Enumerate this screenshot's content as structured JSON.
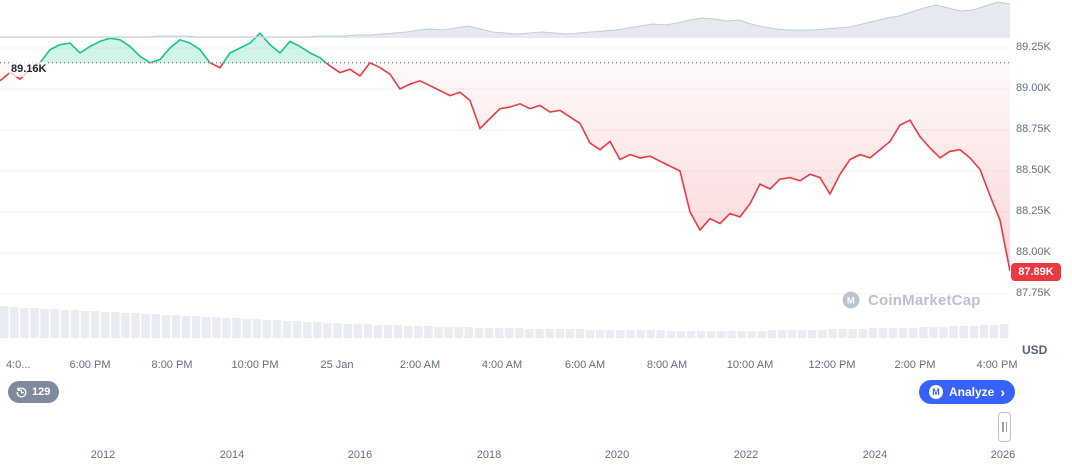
{
  "chart_data": {
    "type": "line",
    "title": "Intraday price chart with baseline, volume and multi-year navigator",
    "baseline": {
      "value": 89.16,
      "label": "89.16K"
    },
    "last_price": {
      "value": 87.89,
      "label": "87.89K"
    },
    "y_axis": {
      "unit": "USD",
      "tick_values": [
        89.25,
        89.0,
        88.75,
        88.5,
        88.25,
        88.0,
        87.75
      ],
      "tick_labels": [
        "89.25K",
        "89.00K",
        "88.75K",
        "88.50K",
        "88.25K",
        "88.00K",
        "87.75K"
      ]
    },
    "x_axis": {
      "tick_labels": [
        "4:0...",
        "6:00 PM",
        "8:00 PM",
        "10:00 PM",
        "25 Jan",
        "2:00 AM",
        "4:00 AM",
        "6:00 AM",
        "8:00 AM",
        "10:00 AM",
        "12:00 PM",
        "2:00 PM",
        "4:00 PM"
      ]
    },
    "series": [
      {
        "name": "price",
        "up_color": "#16c784",
        "down_color": "#ea3943",
        "values": [
          89.05,
          89.1,
          89.06,
          89.12,
          89.16,
          89.24,
          89.27,
          89.28,
          89.22,
          89.26,
          89.29,
          89.31,
          89.3,
          89.26,
          89.2,
          89.16,
          89.18,
          89.25,
          89.3,
          89.28,
          89.24,
          89.16,
          89.13,
          89.22,
          89.25,
          89.28,
          89.34,
          89.27,
          89.22,
          89.29,
          89.26,
          89.22,
          89.19,
          89.14,
          89.1,
          89.12,
          89.08,
          89.16,
          89.13,
          89.09,
          89.0,
          89.03,
          89.05,
          89.02,
          88.99,
          88.96,
          88.98,
          88.93,
          88.76,
          88.82,
          88.88,
          88.89,
          88.91,
          88.88,
          88.9,
          88.86,
          88.87,
          88.83,
          88.79,
          88.67,
          88.63,
          88.68,
          88.57,
          88.6,
          88.58,
          88.59,
          88.56,
          88.53,
          88.5,
          88.25,
          88.14,
          88.21,
          88.18,
          88.24,
          88.22,
          88.3,
          88.42,
          88.39,
          88.45,
          88.46,
          88.44,
          88.48,
          88.46,
          88.36,
          88.48,
          88.57,
          88.6,
          88.58,
          88.63,
          88.68,
          88.78,
          88.81,
          88.71,
          88.64,
          88.58,
          88.62,
          88.63,
          88.58,
          88.51,
          88.35,
          88.2,
          87.89
        ]
      }
    ],
    "volume": [
      32,
      31,
      30,
      30,
      29,
      29,
      28,
      28,
      27,
      27,
      26,
      26,
      25,
      25,
      24,
      24,
      23,
      23,
      22,
      22,
      21,
      21,
      20,
      20,
      19,
      19,
      18,
      18,
      17,
      17,
      16,
      16,
      15,
      15,
      14,
      14,
      14,
      13,
      13,
      13,
      12,
      12,
      12,
      11,
      11,
      11,
      11,
      10,
      10,
      10,
      10,
      10,
      9,
      9,
      9,
      9,
      9,
      9,
      8,
      8,
      8,
      8,
      8,
      8,
      8,
      8,
      7,
      7,
      7,
      7,
      7,
      7,
      7,
      7,
      7,
      7,
      8,
      8,
      8,
      8,
      8,
      8,
      9,
      9,
      9,
      9,
      10,
      10,
      10,
      10,
      10,
      11,
      11,
      11,
      12,
      12,
      12,
      13,
      13,
      14
    ],
    "navigator": {
      "year_labels": [
        "2012",
        "2014",
        "2016",
        "2018",
        "2020",
        "2022",
        "2024",
        "2026"
      ],
      "values": [
        1,
        1,
        1,
        1,
        1,
        1,
        1,
        1,
        1,
        1,
        1,
        1,
        1,
        2,
        2,
        2,
        1,
        1,
        1,
        1,
        1,
        1,
        1,
        1,
        1,
        1,
        2,
        2,
        2,
        3,
        3,
        4,
        5,
        6,
        8,
        9,
        8,
        10,
        12,
        9,
        6,
        5,
        4,
        5,
        6,
        5,
        4,
        5,
        6,
        7,
        8,
        10,
        12,
        14,
        13,
        15,
        18,
        20,
        19,
        17,
        18,
        14,
        11,
        9,
        8,
        8,
        8,
        9,
        10,
        11,
        14,
        17,
        20,
        22,
        26,
        30,
        33,
        30,
        27,
        28,
        32,
        36,
        34
      ]
    }
  },
  "footer": {
    "history_count": "129",
    "analyze_label": "Analyze",
    "analyze_chevron": "›",
    "logo_letter": "M"
  },
  "watermark": {
    "text": "CoinMarketCap"
  },
  "colors": {
    "green": "#16c784",
    "red": "#ea3943",
    "accent_blue": "#3861fb",
    "axis_text": "#616e85",
    "grid": "#eff2f5",
    "baseline_dots": "#555b66",
    "volume_bar": "#e9edf3",
    "navigator_fill": "#e5e9f0",
    "navigator_stroke": "#c3cbd8",
    "badge_gray": "#808a9d",
    "watermark_gray": "#b9c2d2"
  }
}
